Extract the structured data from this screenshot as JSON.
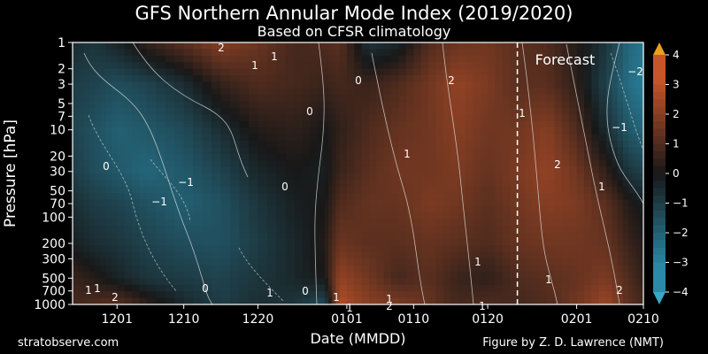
{
  "chart_data": {
    "type": "heatmap",
    "title": "GFS Northern Annular Mode Index (2019/2020)",
    "subtitle": "Based on CFSR climatology",
    "xlabel": "Date (MMDD)",
    "ylabel": "Pressure [hPa]",
    "x_ticks": [
      "1201",
      "1210",
      "1220",
      "0101",
      "0110",
      "0120",
      "0201",
      "0210"
    ],
    "y_ticks": [
      1,
      2,
      3,
      5,
      7,
      10,
      20,
      30,
      50,
      70,
      100,
      200,
      300,
      500,
      700,
      1000
    ],
    "y_ticks_labels": [
      "1",
      "2",
      "3",
      "5",
      "7",
      "10",
      "20",
      "30",
      "50",
      "70",
      "100",
      "200",
      "300",
      "500",
      "700",
      "1000"
    ],
    "y_scale": "log",
    "y_inverted": true,
    "xlim": [
      "1125",
      "0210"
    ],
    "ylim": [
      1000,
      1
    ],
    "colorbar": {
      "ticks": [
        4,
        3,
        2,
        1,
        0,
        -1,
        -2,
        -3,
        -4
      ],
      "tick_labels": [
        "4",
        "3",
        "2",
        "1",
        "0",
        "−1",
        "−2",
        "−3",
        "−4"
      ],
      "range": [
        -4,
        4
      ],
      "colors_negative": "#2a8aa8",
      "colors_positive": "#c8552a",
      "over_color": "#e8a020",
      "under_color": "#3aa7c8"
    },
    "forecast_start": "0124",
    "forecast_label": "Forecast",
    "contour_labels": [
      "2",
      "1",
      "1",
      "0",
      "2",
      "0",
      "1",
      "1",
      "0",
      "−1",
      "−1",
      "1",
      "2",
      "−2",
      "−1",
      "1",
      "1",
      "0",
      "1",
      "0",
      "1",
      "1",
      "1",
      "2",
      "1",
      "2",
      "1",
      "0",
      "2",
      "1"
    ],
    "columns": [
      {
        "date": "1125",
        "values": [
          -0.5,
          -1.0,
          -1.2,
          -1.0,
          -0.6,
          -0.2,
          0.6,
          0.8
        ]
      },
      {
        "date": "1128",
        "values": [
          -0.8,
          -1.2,
          -1.6,
          -1.5,
          -1.0,
          -0.6,
          0.2,
          1.0
        ]
      },
      {
        "date": "1201",
        "values": [
          -0.3,
          -1.5,
          -2.0,
          -1.8,
          -1.2,
          -0.8,
          -0.3,
          1.2
        ]
      },
      {
        "date": "1205",
        "values": [
          0.5,
          -1.2,
          -1.8,
          -2.2,
          -1.6,
          -1.2,
          -0.8,
          0.4
        ]
      },
      {
        "date": "1210",
        "values": [
          1.2,
          -0.6,
          -1.4,
          -1.8,
          -2.0,
          -1.5,
          -1.0,
          -0.4
        ]
      },
      {
        "date": "1215",
        "values": [
          2.0,
          0.5,
          -0.6,
          -1.2,
          -1.6,
          -1.6,
          -1.2,
          -1.0
        ]
      },
      {
        "date": "1220",
        "values": [
          1.5,
          1.0,
          0.2,
          -0.4,
          -0.8,
          -1.0,
          -0.8,
          -0.6
        ]
      },
      {
        "date": "1225",
        "values": [
          0.8,
          0.8,
          0.4,
          0.0,
          -0.2,
          -0.4,
          -0.4,
          -0.8
        ]
      },
      {
        "date": "1229",
        "values": [
          1.0,
          0.6,
          0.0,
          -0.2,
          0.0,
          0.2,
          0.0,
          -1.4
        ]
      },
      {
        "date": "1231",
        "values": [
          1.2,
          0.8,
          0.4,
          0.6,
          1.0,
          1.5,
          2.2,
          2.8
        ]
      },
      {
        "date": "0104",
        "values": [
          -0.8,
          0.6,
          1.0,
          1.2,
          1.4,
          1.2,
          1.6,
          2.0
        ]
      },
      {
        "date": "0108",
        "values": [
          -0.4,
          1.0,
          1.4,
          1.6,
          1.4,
          1.2,
          0.8,
          1.8
        ]
      },
      {
        "date": "0112",
        "values": [
          1.0,
          1.6,
          1.6,
          1.6,
          1.8,
          1.4,
          1.2,
          1.4
        ]
      },
      {
        "date": "0116",
        "values": [
          1.5,
          2.2,
          2.0,
          1.8,
          1.6,
          1.2,
          0.6,
          0.8
        ]
      },
      {
        "date": "0120",
        "values": [
          1.6,
          1.8,
          1.6,
          1.4,
          1.2,
          1.0,
          0.4,
          1.0
        ]
      },
      {
        "date": "0124",
        "values": [
          1.2,
          1.2,
          1.6,
          1.8,
          1.6,
          1.4,
          1.0,
          0.8
        ]
      },
      {
        "date": "0128",
        "values": [
          1.0,
          1.2,
          2.0,
          2.2,
          2.0,
          1.6,
          1.2,
          1.0
        ]
      },
      {
        "date": "0201",
        "values": [
          0.2,
          0.4,
          1.0,
          1.6,
          1.8,
          1.6,
          1.4,
          1.6
        ]
      },
      {
        "date": "0205",
        "values": [
          -0.8,
          -1.2,
          -0.6,
          0.4,
          1.2,
          1.4,
          1.8,
          2.4
        ]
      },
      {
        "date": "0208",
        "values": [
          -2.2,
          -2.4,
          -1.8,
          -0.8,
          0.2,
          0.6,
          1.0,
          1.2
        ]
      },
      {
        "date": "0210",
        "values": [
          -2.6,
          -2.8,
          -2.2,
          -1.2,
          -0.2,
          0.2,
          0.4,
          0.8
        ]
      }
    ],
    "levels_hpa": [
      1,
      3,
      10,
      30,
      70,
      200,
      500,
      1000
    ]
  },
  "footer": {
    "left": "stratobserve.com",
    "right": "Figure by Z. D. Lawrence (NMT)"
  }
}
